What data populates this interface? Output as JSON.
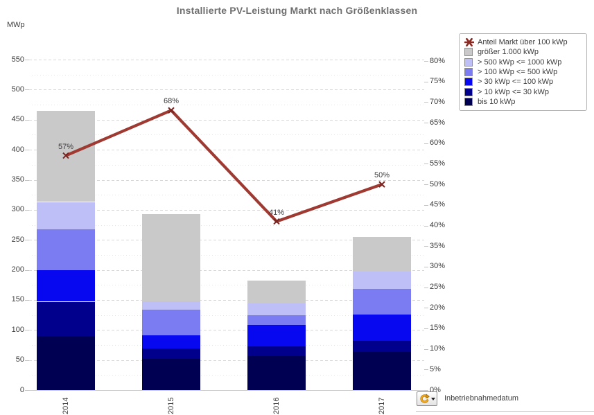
{
  "title": "Installierte PV-Leistung Markt nach Größenklassen",
  "footer": {
    "filter_label": "Inbetriebnahmedatum",
    "button_icon": "refresh-rotate-icon",
    "button_dropdown_icon": "dropdown-arrow-icon"
  },
  "legend": {
    "position": "top-right",
    "items": [
      {
        "label": "Anteil Markt über 100 kWp",
        "marker": "star",
        "color": "#8b2a22"
      },
      {
        "label": "größer 1.000 kWp",
        "marker": "square",
        "color": "#c9c9c9"
      },
      {
        "label": "> 500 kWp <= 1000 kWp",
        "marker": "square",
        "color": "#bfbff7"
      },
      {
        "label": "> 100 kWp <= 500 kWp",
        "marker": "square",
        "color": "#7b7bf2"
      },
      {
        "label": "> 30 kWp <= 100 kWp",
        "marker": "square",
        "color": "#0808f0"
      },
      {
        "label": "> 10 kWp <= 30 kWp",
        "marker": "square",
        "color": "#00008c"
      },
      {
        "label": "bis 10 kWp",
        "marker": "square",
        "color": "#000052"
      }
    ]
  },
  "chart_data": {
    "type": "combo_stacked_bar_line",
    "title": "Installierte PV-Leistung Markt nach Größenklassen",
    "categories": [
      "2014",
      "2015",
      "2016",
      "2017"
    ],
    "stack_series": [
      {
        "name": "bis 10 kWp",
        "color": "#000052",
        "values": [
          90,
          52,
          56,
          63
        ]
      },
      {
        "name": "> 10 kWp <= 30 kWp",
        "color": "#00008c",
        "values": [
          57,
          17,
          17,
          19
        ]
      },
      {
        "name": "> 30 kWp <= 100 kWp",
        "color": "#0808f0",
        "values": [
          52,
          22,
          35,
          44
        ]
      },
      {
        "name": "> 100 kWp <= 500 kWp",
        "color": "#7b7bf2",
        "values": [
          68,
          43,
          17,
          42
        ]
      },
      {
        "name": "> 500 kWp <= 1000 kWp",
        "color": "#bfbff7",
        "values": [
          46,
          14,
          19,
          29
        ]
      },
      {
        "name": "größer 1.000 kWp",
        "color": "#c9c9c9",
        "values": [
          152,
          145,
          38,
          58
        ]
      }
    ],
    "bar_totals": [
      465,
      293,
      182,
      255
    ],
    "line_series": {
      "name": "Anteil Markt über 100 kWp",
      "color": "#9e3a31",
      "marker_color": "#7a2420",
      "axis": "right",
      "values": [
        57,
        68,
        41,
        50
      ],
      "labels": [
        "57%",
        "68%",
        "41%",
        "50%"
      ]
    },
    "left_axis": {
      "label": "MWp",
      "min": 0,
      "max": 550,
      "major_step": 50,
      "minor_step": 25
    },
    "right_axis": {
      "min": 0,
      "max": 80,
      "step": 5,
      "suffix": "%"
    },
    "grid": true,
    "legend_position": "top-right"
  }
}
